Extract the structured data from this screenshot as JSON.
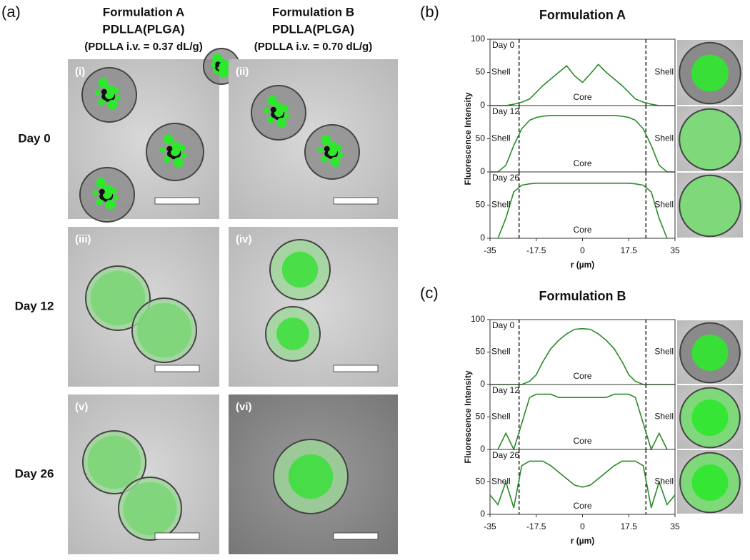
{
  "panel_a": {
    "label": "(a)",
    "columns": [
      {
        "title": "Formulation A",
        "subtitle": "PDLLA(PLGA)",
        "note": "(PDLLA i.v. = 0.37 dL/g)"
      },
      {
        "title": "Formulation B",
        "subtitle": "PDLLA(PLGA)",
        "note": "(PDLLA i.v. = 0.70 dL/g)"
      }
    ],
    "rows": [
      "Day 0",
      "Day 12",
      "Day 26"
    ],
    "image_labels": [
      "(i)",
      "(ii)",
      "(iii)",
      "(iv)",
      "(v)",
      "(vi)"
    ]
  },
  "panels": [
    {
      "label": "(b)",
      "title": "Formulation A",
      "ylabel": "Fluorescence Intensity",
      "xlabel": "r (µm)",
      "xlim": [
        -35,
        35
      ],
      "xticks": [
        -35,
        -17.5,
        0,
        17.5,
        35
      ],
      "ylim": [
        0,
        100
      ],
      "boundaries": [
        -24,
        24
      ],
      "shell": "Shell",
      "core": "Core",
      "x": [
        -35,
        -32,
        -29,
        -26,
        -23,
        -20,
        -17.5,
        -15,
        -12,
        -9,
        -6,
        -3,
        0,
        3,
        6,
        9,
        12,
        15,
        17.5,
        20,
        23,
        26,
        29,
        32,
        35
      ],
      "subplots": [
        {
          "day": "Day 0",
          "yticks": [
            0,
            50,
            100
          ],
          "values": [
            0,
            0,
            0,
            2,
            5,
            10,
            20,
            30,
            40,
            50,
            60,
            45,
            35,
            48,
            62,
            50,
            40,
            30,
            20,
            10,
            5,
            2,
            0,
            0,
            0
          ]
        },
        {
          "day": "Day 12",
          "yticks": [
            0,
            50
          ],
          "values": [
            0,
            0,
            10,
            40,
            65,
            78,
            82,
            84,
            85,
            85,
            85,
            85,
            85,
            85,
            85,
            85,
            85,
            84,
            82,
            78,
            65,
            40,
            10,
            0,
            0
          ]
        },
        {
          "day": "Day 26",
          "yticks": [
            0,
            50
          ],
          "values": [
            null,
            0,
            30,
            70,
            80,
            82,
            83,
            83,
            83,
            83,
            83,
            83,
            83,
            83,
            83,
            83,
            83,
            83,
            83,
            82,
            80,
            70,
            30,
            0,
            null
          ]
        }
      ]
    },
    {
      "label": "(c)",
      "title": "Formulation B",
      "ylabel": "Fluorescence Intensity",
      "xlabel": "r (µm)",
      "xlim": [
        -35,
        35
      ],
      "xticks": [
        -35,
        -17.5,
        0,
        17.5,
        35
      ],
      "ylim": [
        0,
        100
      ],
      "boundaries": [
        -24,
        24
      ],
      "shell": "Shell",
      "core": "Core",
      "x": [
        -35,
        -32,
        -29,
        -26,
        -23,
        -20,
        -17.5,
        -15,
        -12,
        -9,
        -6,
        -3,
        0,
        3,
        6,
        9,
        12,
        15,
        17.5,
        20,
        23,
        26,
        29,
        32,
        35
      ],
      "subplots": [
        {
          "day": "Day 0",
          "yticks": [
            0,
            50,
            100
          ],
          "values": [
            0,
            0,
            0,
            0,
            0,
            5,
            15,
            35,
            55,
            68,
            78,
            85,
            86,
            85,
            78,
            68,
            55,
            35,
            15,
            5,
            0,
            0,
            0,
            0,
            0
          ]
        },
        {
          "day": "Day 12",
          "yticks": [
            0,
            50
          ],
          "values": [
            null,
            0,
            25,
            0,
            40,
            80,
            85,
            85,
            85,
            80,
            80,
            80,
            80,
            80,
            80,
            80,
            85,
            85,
            85,
            80,
            40,
            0,
            25,
            0,
            null
          ]
        },
        {
          "day": "Day 26",
          "yticks": [
            0,
            50
          ],
          "values": [
            30,
            15,
            50,
            10,
            75,
            82,
            82,
            82,
            75,
            65,
            55,
            45,
            42,
            45,
            55,
            65,
            75,
            82,
            82,
            82,
            75,
            10,
            50,
            15,
            30
          ]
        }
      ]
    }
  ]
}
